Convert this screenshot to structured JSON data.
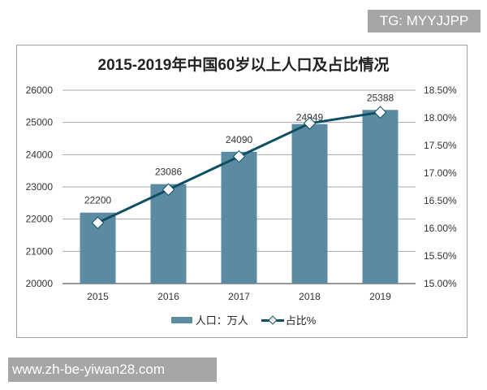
{
  "watermarks": {
    "top": "TG: MYYJJPP",
    "bottom": "www.zh-be-yiwan28.com"
  },
  "chart_data": {
    "type": "bar+line",
    "title": "2015-2019年中国60岁以上人口及占比情况",
    "categories": [
      "2015",
      "2016",
      "2017",
      "2018",
      "2019"
    ],
    "series": [
      {
        "name": "人口：万人",
        "type": "bar",
        "axis": "left",
        "values": [
          22200,
          23086,
          24090,
          24949,
          25388
        ],
        "color": "#5b8ba3"
      },
      {
        "name": "占比%",
        "type": "line",
        "axis": "right",
        "values": [
          16.1,
          16.7,
          17.3,
          17.9,
          18.1
        ],
        "color": "#0e4f63"
      }
    ],
    "y_left": {
      "range": [
        20000,
        26000
      ],
      "ticks": [
        "20000",
        "21000",
        "22000",
        "23000",
        "24000",
        "25000",
        "26000"
      ]
    },
    "y_right": {
      "range": [
        15.0,
        18.5
      ],
      "ticks": [
        "15.00%",
        "15.50%",
        "16.00%",
        "16.50%",
        "17.00%",
        "17.50%",
        "18.00%",
        "18.50%"
      ]
    },
    "grid": true,
    "legend": "bottom"
  }
}
